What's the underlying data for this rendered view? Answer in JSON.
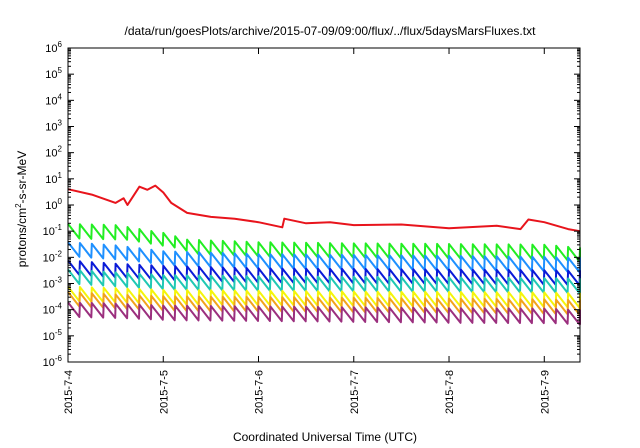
{
  "chart_data": {
    "type": "line",
    "title": "/data/run/goesPlots/archive/2015-07-09/09:00/flux/../flux/5daysMarsFluxes.txt",
    "xlabel": "Coordinated Universal Time (UTC)",
    "ylabel": {
      "prefix": "protons/cm",
      "sup": "2",
      "suffix": "-s-sr-MeV"
    },
    "y_scale": "log",
    "ylim": [
      1e-06,
      1000000.0
    ],
    "xlim": [
      "2015-7-4",
      "2015-7-9 09:00"
    ],
    "x_ticks": [
      "2015-7-4",
      "2015-7-5",
      "2015-7-6",
      "2015-7-7",
      "2015-7-8",
      "2015-7-9"
    ],
    "y_ticks": [
      {
        "base": "10",
        "exp": "-6"
      },
      {
        "base": "10",
        "exp": "-5"
      },
      {
        "base": "10",
        "exp": "-4"
      },
      {
        "base": "10",
        "exp": "-3"
      },
      {
        "base": "10",
        "exp": "-2"
      },
      {
        "base": "10",
        "exp": "-1"
      },
      {
        "base": "10",
        "exp": "0"
      },
      {
        "base": "10",
        "exp": "1"
      },
      {
        "base": "10",
        "exp": "2"
      },
      {
        "base": "10",
        "exp": "3"
      },
      {
        "base": "10",
        "exp": "4"
      },
      {
        "base": "10",
        "exp": "5"
      },
      {
        "base": "10",
        "exp": "6"
      }
    ],
    "grid": false,
    "legend": "none",
    "series": [
      {
        "color": "#e8141c",
        "points": [
          [
            "2015-7-4 00:00",
            4.0
          ],
          [
            "2015-7-4 06:00",
            2.5
          ],
          [
            "2015-7-4 12:00",
            1.2
          ],
          [
            "2015-7-4 14:00",
            1.8
          ],
          [
            "2015-7-4 15:00",
            1.0
          ],
          [
            "2015-7-4 18:00",
            5.0
          ],
          [
            "2015-7-4 20:00",
            3.8
          ],
          [
            "2015-7-4 22:00",
            5.5
          ],
          [
            "2015-7-5 00:00",
            3.0
          ],
          [
            "2015-7-5 02:00",
            1.2
          ],
          [
            "2015-7-5 06:00",
            0.5
          ],
          [
            "2015-7-5 12:00",
            0.35
          ],
          [
            "2015-7-5 18:00",
            0.3
          ],
          [
            "2015-7-6 00:00",
            0.22
          ],
          [
            "2015-7-6 06:00",
            0.14
          ],
          [
            "2015-7-6 06:30",
            0.3
          ],
          [
            "2015-7-6 12:00",
            0.2
          ],
          [
            "2015-7-6 18:00",
            0.22
          ],
          [
            "2015-7-7 00:00",
            0.17
          ],
          [
            "2015-7-7 12:00",
            0.18
          ],
          [
            "2015-7-8 00:00",
            0.13
          ],
          [
            "2015-7-8 12:00",
            0.16
          ],
          [
            "2015-7-8 18:00",
            0.12
          ],
          [
            "2015-7-8 20:00",
            0.28
          ],
          [
            "2015-7-9 00:00",
            0.22
          ],
          [
            "2015-7-9 06:00",
            0.12
          ],
          [
            "2015-7-9 09:00",
            0.1
          ]
        ]
      },
      {
        "color": "#22ee22",
        "points": [
          [
            "2015-7-4 00:00",
            0.1
          ],
          [
            "2015-7-4 12:00",
            0.09
          ],
          [
            "2015-7-5 00:00",
            0.045
          ],
          [
            "2015-7-5 06:00",
            0.025
          ],
          [
            "2015-7-6 00:00",
            0.02
          ],
          [
            "2015-7-7 00:00",
            0.018
          ],
          [
            "2015-7-8 00:00",
            0.017
          ],
          [
            "2015-7-9 00:00",
            0.016
          ],
          [
            "2015-7-9 09:00",
            0.012
          ]
        ]
      },
      {
        "color": "#1e90ff",
        "points": [
          [
            "2015-7-4 00:00",
            0.02
          ],
          [
            "2015-7-4 12:00",
            0.015
          ],
          [
            "2015-7-5 00:00",
            0.009
          ],
          [
            "2015-7-6 00:00",
            0.007
          ],
          [
            "2015-7-7 00:00",
            0.0065
          ],
          [
            "2015-7-8 00:00",
            0.006
          ],
          [
            "2015-7-9 00:00",
            0.0055
          ],
          [
            "2015-7-9 09:00",
            0.005
          ]
        ]
      },
      {
        "color": "#0a1ad8",
        "points": [
          [
            "2015-7-4 00:00",
            0.004
          ],
          [
            "2015-7-4 12:00",
            0.003
          ],
          [
            "2015-7-5 00:00",
            0.0025
          ],
          [
            "2015-7-6 00:00",
            0.002
          ],
          [
            "2015-7-7 00:00",
            0.0019
          ],
          [
            "2015-7-8 00:00",
            0.0018
          ],
          [
            "2015-7-9 00:00",
            0.0017
          ],
          [
            "2015-7-9 09:00",
            0.0016
          ]
        ]
      },
      {
        "color": "#20c8b4",
        "points": [
          [
            "2015-7-4 00:00",
            0.0018
          ],
          [
            "2015-7-4 12:00",
            0.0014
          ],
          [
            "2015-7-5 00:00",
            0.0011
          ],
          [
            "2015-7-6 00:00",
            0.001
          ],
          [
            "2015-7-7 00:00",
            0.00095
          ],
          [
            "2015-7-8 00:00",
            0.0009
          ],
          [
            "2015-7-9 00:00",
            0.00085
          ],
          [
            "2015-7-9 09:00",
            0.0008
          ]
        ]
      },
      {
        "color": "#f5f50a",
        "points": [
          [
            "2015-7-4 00:00",
            0.0004
          ],
          [
            "2015-7-4 12:00",
            0.00035
          ],
          [
            "2015-7-5 00:00",
            0.0003
          ],
          [
            "2015-7-6 00:00",
            0.00028
          ],
          [
            "2015-7-7 00:00",
            0.00026
          ],
          [
            "2015-7-8 00:00",
            0.00025
          ],
          [
            "2015-7-9 00:00",
            0.00024
          ],
          [
            "2015-7-9 09:00",
            0.00022
          ]
        ]
      },
      {
        "color": "#f2a31c",
        "points": [
          [
            "2015-7-4 00:00",
            0.00025
          ],
          [
            "2015-7-4 12:00",
            0.0002
          ],
          [
            "2015-7-5 00:00",
            0.00017
          ],
          [
            "2015-7-6 00:00",
            0.00016
          ],
          [
            "2015-7-7 00:00",
            0.00015
          ],
          [
            "2015-7-8 00:00",
            0.00014
          ],
          [
            "2015-7-9 00:00",
            0.00013
          ],
          [
            "2015-7-9 09:00",
            0.00012
          ]
        ]
      },
      {
        "color": "#9b2f7e",
        "points": [
          [
            "2015-7-4 00:00",
            0.0001
          ],
          [
            "2015-7-4 12:00",
            9e-05
          ],
          [
            "2015-7-5 00:00",
            7.5e-05
          ],
          [
            "2015-7-6 00:00",
            7e-05
          ],
          [
            "2015-7-7 00:00",
            6.5e-05
          ],
          [
            "2015-7-8 00:00",
            6e-05
          ],
          [
            "2015-7-9 00:00",
            5.8e-05
          ],
          [
            "2015-7-9 09:00",
            5e-05
          ]
        ]
      }
    ]
  }
}
